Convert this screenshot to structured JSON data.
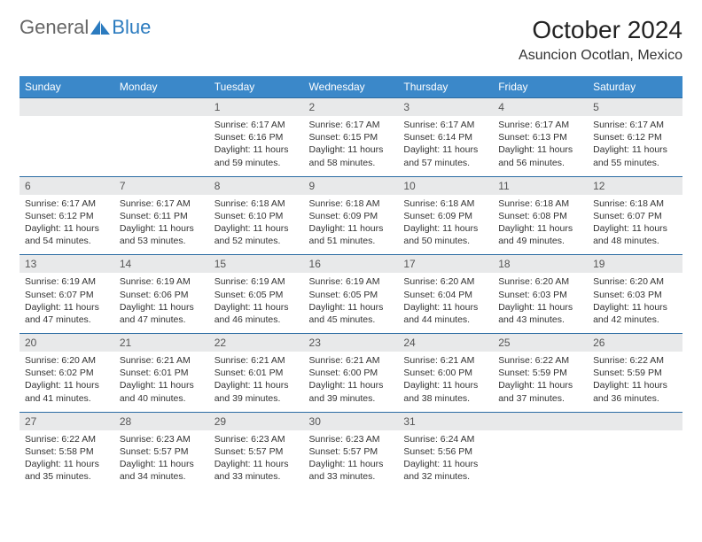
{
  "brand": {
    "part1": "General",
    "part2": "Blue"
  },
  "title": "October 2024",
  "location": "Asuncion Ocotlan, Mexico",
  "colors": {
    "header_bg": "#3b88c9",
    "header_text": "#ffffff",
    "rule": "#2b6ca3",
    "daynum_bg": "#e8e9ea",
    "body_text": "#333333",
    "brand_gray": "#666666",
    "brand_blue": "#2b7bbf"
  },
  "dayNames": [
    "Sunday",
    "Monday",
    "Tuesday",
    "Wednesday",
    "Thursday",
    "Friday",
    "Saturday"
  ],
  "days": [
    {
      "n": 1,
      "sr": "6:17 AM",
      "ss": "6:16 PM",
      "dl": "11 hours and 59 minutes."
    },
    {
      "n": 2,
      "sr": "6:17 AM",
      "ss": "6:15 PM",
      "dl": "11 hours and 58 minutes."
    },
    {
      "n": 3,
      "sr": "6:17 AM",
      "ss": "6:14 PM",
      "dl": "11 hours and 57 minutes."
    },
    {
      "n": 4,
      "sr": "6:17 AM",
      "ss": "6:13 PM",
      "dl": "11 hours and 56 minutes."
    },
    {
      "n": 5,
      "sr": "6:17 AM",
      "ss": "6:12 PM",
      "dl": "11 hours and 55 minutes."
    },
    {
      "n": 6,
      "sr": "6:17 AM",
      "ss": "6:12 PM",
      "dl": "11 hours and 54 minutes."
    },
    {
      "n": 7,
      "sr": "6:17 AM",
      "ss": "6:11 PM",
      "dl": "11 hours and 53 minutes."
    },
    {
      "n": 8,
      "sr": "6:18 AM",
      "ss": "6:10 PM",
      "dl": "11 hours and 52 minutes."
    },
    {
      "n": 9,
      "sr": "6:18 AM",
      "ss": "6:09 PM",
      "dl": "11 hours and 51 minutes."
    },
    {
      "n": 10,
      "sr": "6:18 AM",
      "ss": "6:09 PM",
      "dl": "11 hours and 50 minutes."
    },
    {
      "n": 11,
      "sr": "6:18 AM",
      "ss": "6:08 PM",
      "dl": "11 hours and 49 minutes."
    },
    {
      "n": 12,
      "sr": "6:18 AM",
      "ss": "6:07 PM",
      "dl": "11 hours and 48 minutes."
    },
    {
      "n": 13,
      "sr": "6:19 AM",
      "ss": "6:07 PM",
      "dl": "11 hours and 47 minutes."
    },
    {
      "n": 14,
      "sr": "6:19 AM",
      "ss": "6:06 PM",
      "dl": "11 hours and 47 minutes."
    },
    {
      "n": 15,
      "sr": "6:19 AM",
      "ss": "6:05 PM",
      "dl": "11 hours and 46 minutes."
    },
    {
      "n": 16,
      "sr": "6:19 AM",
      "ss": "6:05 PM",
      "dl": "11 hours and 45 minutes."
    },
    {
      "n": 17,
      "sr": "6:20 AM",
      "ss": "6:04 PM",
      "dl": "11 hours and 44 minutes."
    },
    {
      "n": 18,
      "sr": "6:20 AM",
      "ss": "6:03 PM",
      "dl": "11 hours and 43 minutes."
    },
    {
      "n": 19,
      "sr": "6:20 AM",
      "ss": "6:03 PM",
      "dl": "11 hours and 42 minutes."
    },
    {
      "n": 20,
      "sr": "6:20 AM",
      "ss": "6:02 PM",
      "dl": "11 hours and 41 minutes."
    },
    {
      "n": 21,
      "sr": "6:21 AM",
      "ss": "6:01 PM",
      "dl": "11 hours and 40 minutes."
    },
    {
      "n": 22,
      "sr": "6:21 AM",
      "ss": "6:01 PM",
      "dl": "11 hours and 39 minutes."
    },
    {
      "n": 23,
      "sr": "6:21 AM",
      "ss": "6:00 PM",
      "dl": "11 hours and 39 minutes."
    },
    {
      "n": 24,
      "sr": "6:21 AM",
      "ss": "6:00 PM",
      "dl": "11 hours and 38 minutes."
    },
    {
      "n": 25,
      "sr": "6:22 AM",
      "ss": "5:59 PM",
      "dl": "11 hours and 37 minutes."
    },
    {
      "n": 26,
      "sr": "6:22 AM",
      "ss": "5:59 PM",
      "dl": "11 hours and 36 minutes."
    },
    {
      "n": 27,
      "sr": "6:22 AM",
      "ss": "5:58 PM",
      "dl": "11 hours and 35 minutes."
    },
    {
      "n": 28,
      "sr": "6:23 AM",
      "ss": "5:57 PM",
      "dl": "11 hours and 34 minutes."
    },
    {
      "n": 29,
      "sr": "6:23 AM",
      "ss": "5:57 PM",
      "dl": "11 hours and 33 minutes."
    },
    {
      "n": 30,
      "sr": "6:23 AM",
      "ss": "5:57 PM",
      "dl": "11 hours and 33 minutes."
    },
    {
      "n": 31,
      "sr": "6:24 AM",
      "ss": "5:56 PM",
      "dl": "11 hours and 32 minutes."
    }
  ],
  "labels": {
    "sunrise": "Sunrise:",
    "sunset": "Sunset:",
    "daylight": "Daylight:"
  },
  "layout": {
    "firstDayOffset": 2,
    "totalCells": 35
  }
}
